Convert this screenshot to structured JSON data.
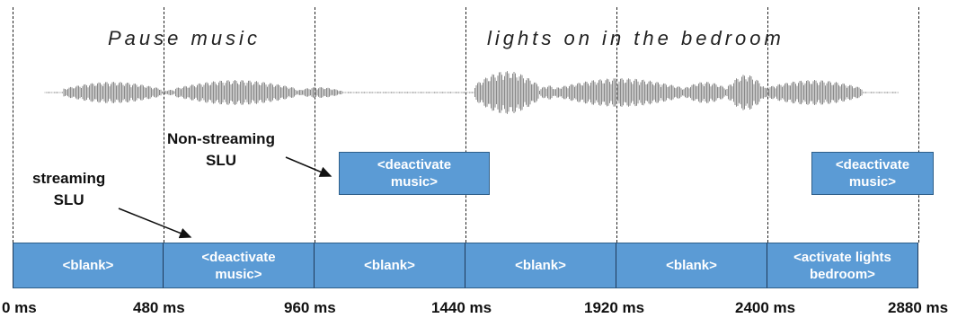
{
  "utterances": [
    {
      "id": "utt1",
      "text": "Pause music"
    },
    {
      "id": "utt2",
      "text": "lights on in the bedroom"
    }
  ],
  "time_axis": [
    "0 ms",
    "480 ms",
    "960 ms",
    "1440 ms",
    "1920 ms",
    "2400 ms",
    "2880 ms"
  ],
  "streaming": {
    "label_line1": "streaming",
    "label_line2": "SLU",
    "segments": [
      {
        "line1": "<blank>",
        "line2": ""
      },
      {
        "line1": "<deactivate",
        "line2": "music>"
      },
      {
        "line1": "<blank>",
        "line2": ""
      },
      {
        "line1": "<blank>",
        "line2": ""
      },
      {
        "line1": "<blank>",
        "line2": ""
      },
      {
        "line1": "<activate lights",
        "line2": "bedroom>"
      }
    ]
  },
  "non_streaming": {
    "label_line1": "Non-streaming",
    "label_line2": "SLU",
    "outputs": [
      {
        "line1": "<deactivate",
        "line2": "music>"
      },
      {
        "line1": "<deactivate",
        "line2": "music>"
      }
    ]
  }
}
